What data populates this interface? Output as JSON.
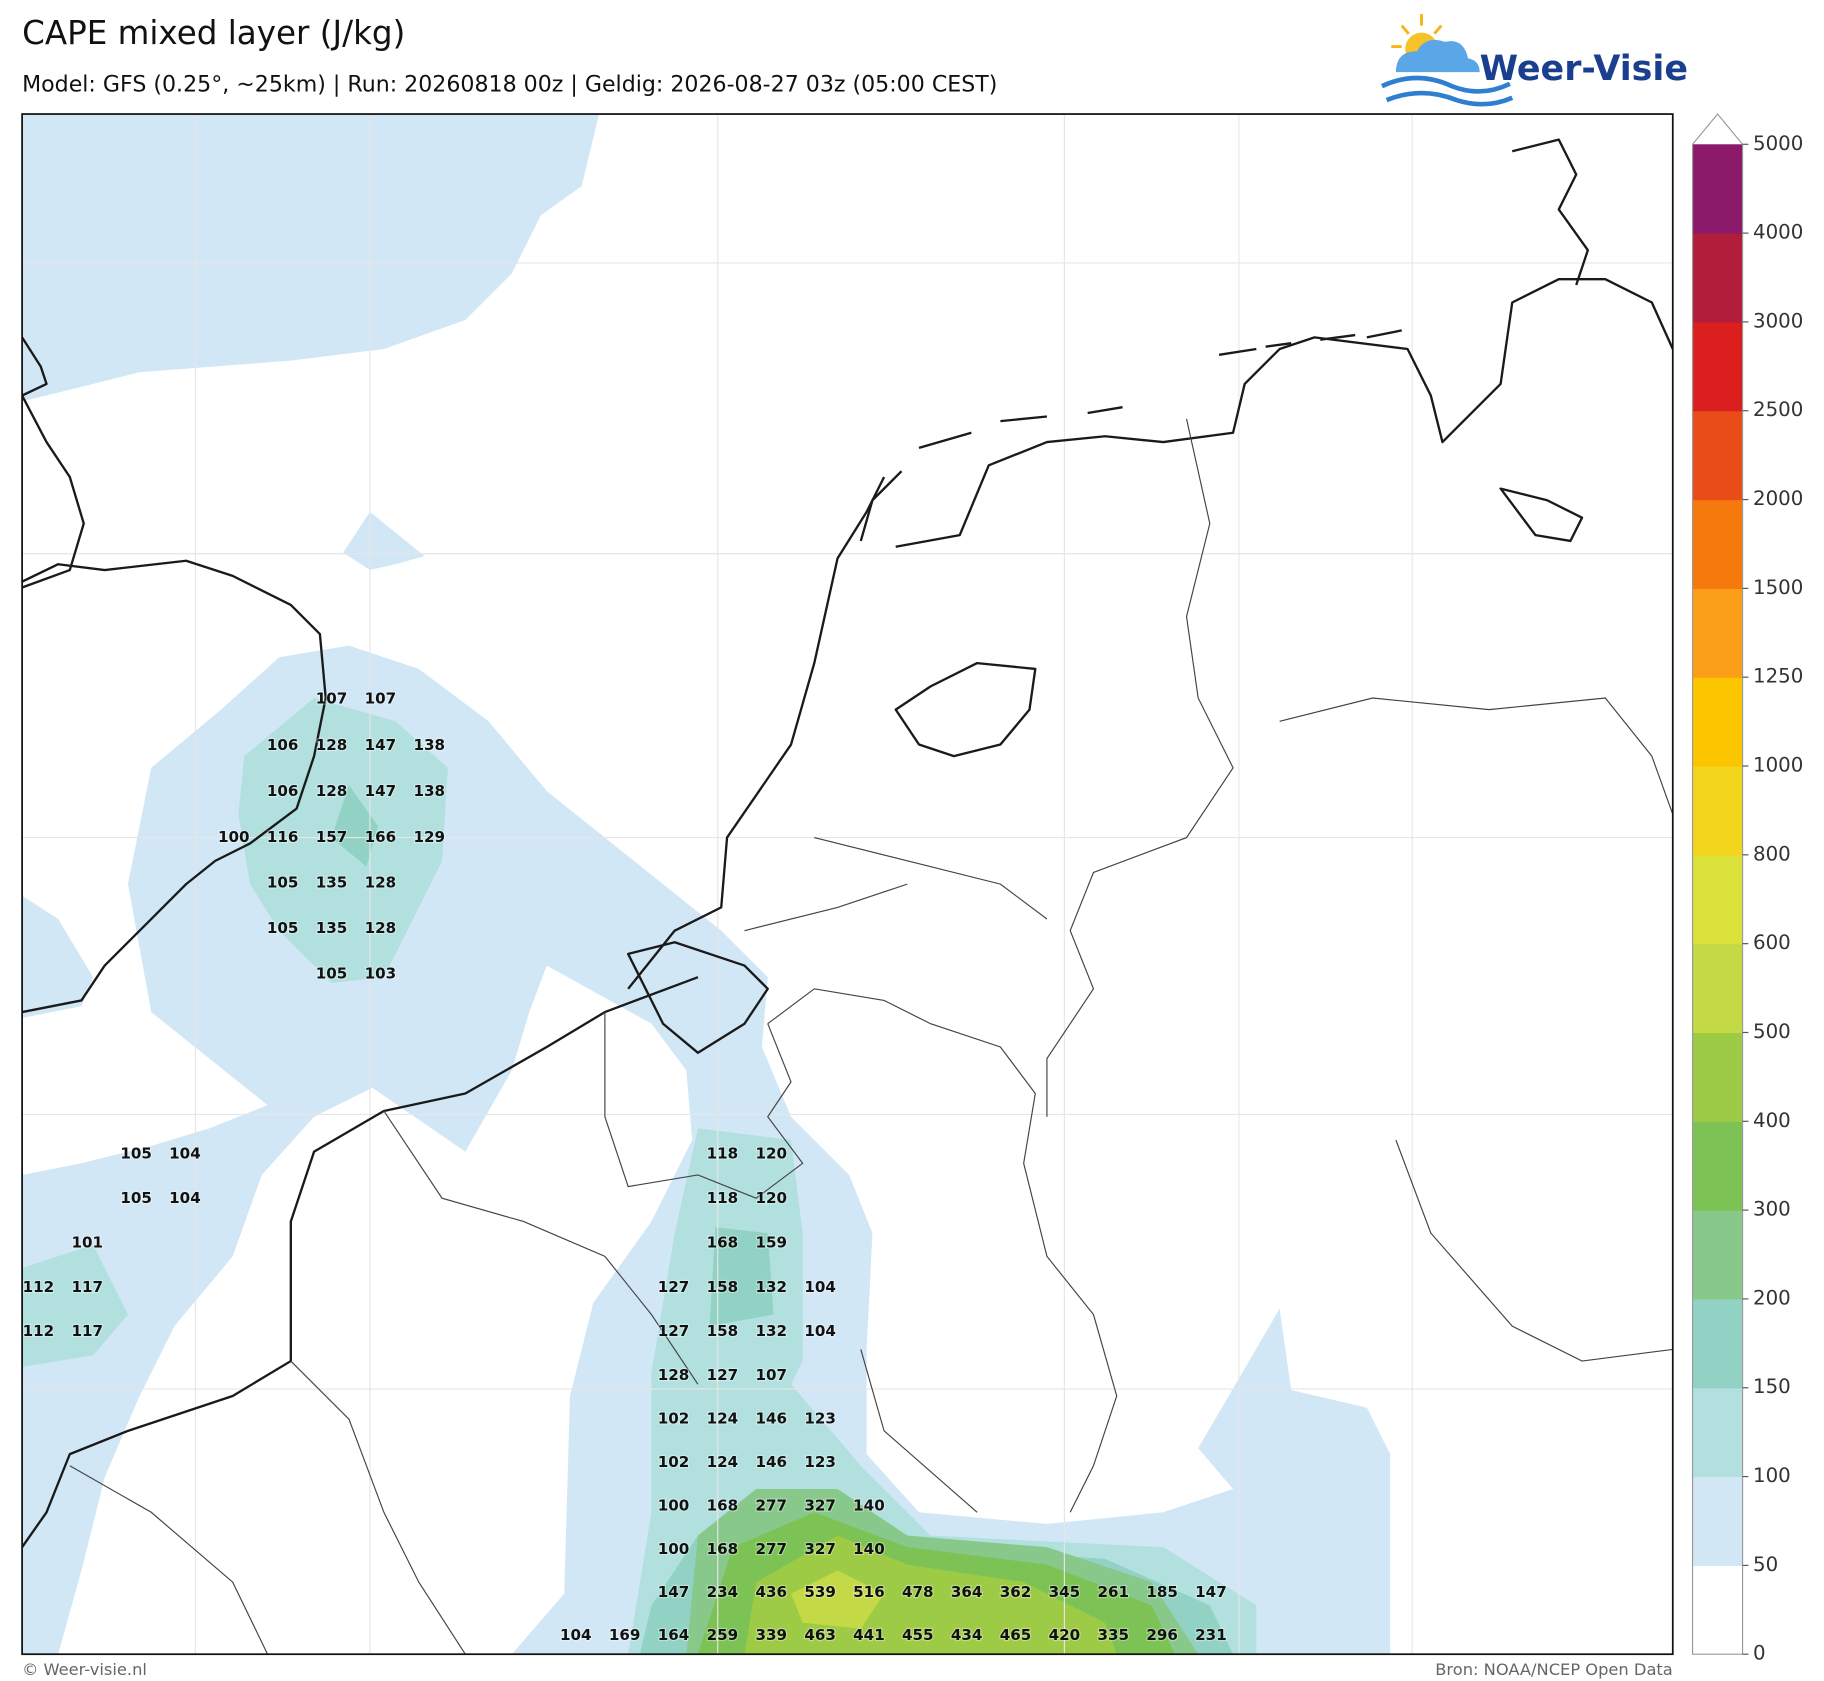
{
  "header": {
    "title": "CAPE mixed layer (J/kg)",
    "subtitle": "Model: GFS (0.25°, ~25km)  |  Run: 20260818 00z  |  Geldig: 2026-08-27 03z (05:00 CEST)"
  },
  "logo": {
    "text": "Weer-Visie"
  },
  "colorbar": {
    "ticks": [
      0,
      50,
      100,
      150,
      200,
      300,
      400,
      500,
      600,
      800,
      1000,
      1250,
      1500,
      2000,
      2500,
      3000,
      4000,
      5000
    ],
    "colors": [
      "#ffffff",
      "#d1e7f5",
      "#b2e0df",
      "#92d2c4",
      "#88c98b",
      "#7cc255",
      "#9ecb45",
      "#c3d946",
      "#dde23b",
      "#f2d51c",
      "#fbc500",
      "#fb9f19",
      "#f6790e",
      "#ea4c18",
      "#db1f1f",
      "#b31d3c",
      "#8b1a6b"
    ],
    "extend_max": true
  },
  "map": {
    "values": [
      [
        null,
        null,
        null,
        null,
        null,
        null,
        107,
        107,
        null,
        null,
        null,
        null,
        null,
        null,
        null,
        null,
        null,
        null,
        null,
        null,
        null,
        null,
        null,
        null,
        null
      ],
      [
        null,
        null,
        null,
        null,
        null,
        106,
        128,
        147,
        138,
        null,
        null,
        null,
        null,
        null,
        null,
        null,
        null,
        null,
        null,
        null,
        null,
        null,
        null,
        null,
        null
      ],
      [
        null,
        null,
        null,
        null,
        null,
        106,
        128,
        147,
        138,
        null,
        null,
        null,
        null,
        null,
        null,
        null,
        null,
        null,
        null,
        null,
        null,
        null,
        null,
        null,
        null
      ],
      [
        null,
        null,
        null,
        null,
        100,
        116,
        157,
        166,
        129,
        null,
        null,
        null,
        null,
        null,
        null,
        null,
        null,
        null,
        null,
        null,
        null,
        null,
        null,
        null,
        null
      ],
      [
        null,
        null,
        null,
        null,
        null,
        105,
        135,
        128,
        null,
        null,
        null,
        null,
        null,
        null,
        null,
        null,
        null,
        null,
        null,
        null,
        null,
        null,
        null,
        null,
        null
      ],
      [
        null,
        null,
        null,
        null,
        null,
        105,
        135,
        128,
        null,
        null,
        null,
        null,
        null,
        null,
        null,
        null,
        null,
        null,
        null,
        null,
        null,
        null,
        null,
        null,
        null
      ],
      [
        null,
        null,
        null,
        null,
        null,
        null,
        105,
        103,
        null,
        null,
        null,
        null,
        null,
        null,
        null,
        null,
        null,
        null,
        null,
        null,
        null,
        null,
        null,
        null,
        null
      ],
      [
        null,
        null,
        null,
        null,
        null,
        null,
        null,
        null,
        null,
        null,
        null,
        null,
        null,
        null,
        null,
        null,
        null,
        null,
        null,
        null,
        null,
        null,
        null,
        null,
        null
      ],
      [
        null,
        null,
        null,
        null,
        null,
        null,
        null,
        null,
        null,
        null,
        null,
        null,
        null,
        null,
        null,
        null,
        null,
        null,
        null,
        null,
        null,
        null,
        null,
        null,
        null
      ],
      [
        null,
        null,
        null,
        null,
        null,
        null,
        null,
        null,
        null,
        null,
        null,
        null,
        null,
        null,
        null,
        null,
        null,
        null,
        null,
        null,
        null,
        null,
        null,
        null,
        null
      ],
      [
        null,
        null,
        105,
        104,
        null,
        null,
        null,
        null,
        null,
        null,
        null,
        null,
        null,
        null,
        118,
        120,
        null,
        null,
        null,
        null,
        null,
        null,
        null,
        null,
        null
      ],
      [
        null,
        null,
        105,
        104,
        null,
        null,
        null,
        null,
        null,
        null,
        null,
        null,
        null,
        null,
        118,
        120,
        null,
        null,
        null,
        null,
        null,
        null,
        null,
        null,
        null
      ],
      [
        null,
        101,
        null,
        null,
        null,
        null,
        null,
        null,
        null,
        null,
        null,
        null,
        null,
        null,
        168,
        159,
        null,
        null,
        null,
        null,
        null,
        null,
        null,
        null,
        null
      ],
      [
        112,
        117,
        null,
        null,
        null,
        null,
        null,
        null,
        null,
        null,
        null,
        null,
        null,
        127,
        158,
        132,
        104,
        null,
        null,
        null,
        null,
        null,
        null,
        null,
        null
      ],
      [
        112,
        117,
        null,
        null,
        null,
        null,
        null,
        null,
        null,
        null,
        null,
        null,
        null,
        127,
        158,
        132,
        104,
        null,
        null,
        null,
        null,
        null,
        null,
        null,
        null
      ],
      [
        null,
        null,
        null,
        null,
        null,
        null,
        null,
        null,
        null,
        null,
        null,
        null,
        null,
        128,
        127,
        107,
        null,
        null,
        null,
        null,
        null,
        null,
        null,
        null,
        null
      ],
      [
        null,
        null,
        null,
        null,
        null,
        null,
        null,
        null,
        null,
        null,
        null,
        null,
        null,
        102,
        124,
        146,
        123,
        null,
        null,
        null,
        null,
        null,
        null,
        null,
        null
      ],
      [
        null,
        null,
        null,
        null,
        null,
        null,
        null,
        null,
        null,
        null,
        null,
        null,
        null,
        102,
        124,
        146,
        123,
        null,
        null,
        null,
        null,
        null,
        null,
        null,
        null
      ],
      [
        null,
        null,
        null,
        null,
        null,
        null,
        null,
        null,
        null,
        null,
        null,
        null,
        null,
        100,
        168,
        277,
        327,
        140,
        null,
        null,
        null,
        null,
        null,
        null,
        null
      ],
      [
        null,
        null,
        null,
        null,
        null,
        null,
        null,
        null,
        null,
        null,
        null,
        null,
        null,
        100,
        168,
        277,
        327,
        140,
        null,
        null,
        null,
        null,
        null,
        null,
        null
      ],
      [
        null,
        null,
        null,
        null,
        null,
        null,
        null,
        null,
        null,
        null,
        null,
        null,
        null,
        147,
        234,
        436,
        539,
        516,
        478,
        364,
        362,
        345,
        261,
        185,
        147
      ],
      [
        null,
        null,
        null,
        null,
        null,
        null,
        null,
        null,
        null,
        null,
        null,
        104,
        169,
        164,
        259,
        339,
        463,
        441,
        455,
        434,
        465,
        420,
        335,
        296,
        231
      ]
    ]
  },
  "footer": {
    "left": "© Weer-visie.nl",
    "right": "Bron: NOAA/NCEP Open Data"
  }
}
